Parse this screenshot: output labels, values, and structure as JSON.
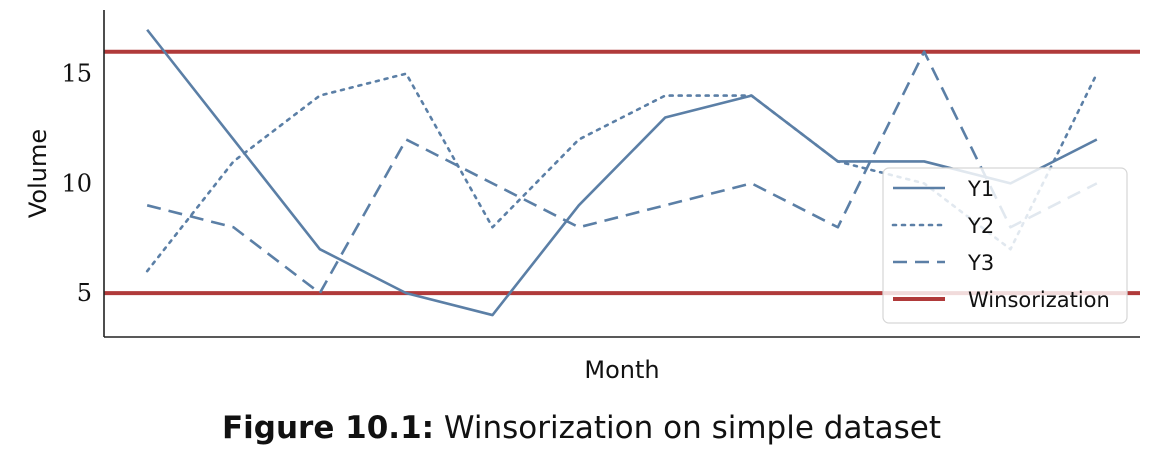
{
  "chart_data": {
    "type": "line",
    "xlabel": "Month",
    "ylabel": "Volume",
    "x": [
      1,
      2,
      3,
      4,
      5,
      6,
      7,
      8,
      9,
      10,
      11,
      12
    ],
    "ylim": [
      3,
      17.9
    ],
    "xlim": [
      0.5,
      12.5
    ],
    "yticks": [
      5,
      10,
      15
    ],
    "series": [
      {
        "name": "Y1",
        "style": "solid",
        "values": [
          17,
          12,
          7,
          5,
          4,
          9,
          13,
          14,
          11,
          11,
          10,
          12
        ]
      },
      {
        "name": "Y2",
        "style": "dotted",
        "values": [
          6,
          11,
          14,
          15,
          8,
          12,
          14,
          14,
          11,
          10,
          7,
          15
        ]
      },
      {
        "name": "Y3",
        "style": "dashed",
        "values": [
          9,
          8,
          5,
          12,
          10,
          8,
          9,
          10,
          8,
          16,
          8,
          10
        ]
      }
    ],
    "reference_lines": [
      {
        "name": "Winsorization",
        "y": 16
      },
      {
        "name": "Winsorization",
        "y": 5
      }
    ],
    "legend": [
      "Y1",
      "Y2",
      "Y3",
      "Winsorization"
    ],
    "legend_location": "lower-right",
    "grid": false,
    "colors": {
      "series": "#5b7fa6",
      "reference": "#b03a3a"
    }
  },
  "caption": {
    "label": "Figure 10.1:",
    "text": " Winsorization on simple dataset"
  }
}
